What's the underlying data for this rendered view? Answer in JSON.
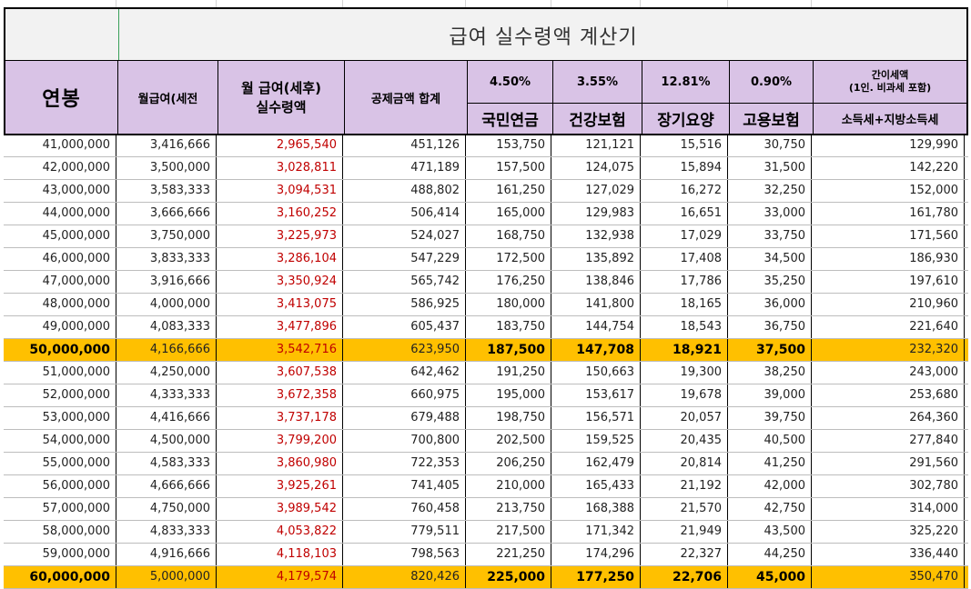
{
  "title": "급여 실수령액 계산기",
  "headers": {
    "annual": "연봉",
    "monthly_pre": "월급여(세전",
    "monthly_post_1": "월 급여(세후)",
    "monthly_post_2": "실수령액",
    "deduction_total": "공제금액 합계",
    "pension_rate": "4.50%",
    "health_rate": "3.55%",
    "longterm_rate": "12.81%",
    "employment_rate": "0.90%",
    "tax_top_1": "간이세액",
    "tax_top_2": "(1인. 비과세 포함)",
    "pension": "국민연금",
    "health": "건강보험",
    "longterm": "장기요양",
    "employment": "고용보험",
    "tax": "소득세+지방소득세"
  },
  "rows": [
    {
      "annual": "41,000,000",
      "pre": "3,416,666",
      "post": "2,965,540",
      "ded": "451,126",
      "pension": "153,750",
      "health": "121,121",
      "lt": "15,516",
      "emp": "30,750",
      "tax": "129,990",
      "hl": false
    },
    {
      "annual": "42,000,000",
      "pre": "3,500,000",
      "post": "3,028,811",
      "ded": "471,189",
      "pension": "157,500",
      "health": "124,075",
      "lt": "15,894",
      "emp": "31,500",
      "tax": "142,220",
      "hl": false
    },
    {
      "annual": "43,000,000",
      "pre": "3,583,333",
      "post": "3,094,531",
      "ded": "488,802",
      "pension": "161,250",
      "health": "127,029",
      "lt": "16,272",
      "emp": "32,250",
      "tax": "152,000",
      "hl": false
    },
    {
      "annual": "44,000,000",
      "pre": "3,666,666",
      "post": "3,160,252",
      "ded": "506,414",
      "pension": "165,000",
      "health": "129,983",
      "lt": "16,651",
      "emp": "33,000",
      "tax": "161,780",
      "hl": false
    },
    {
      "annual": "45,000,000",
      "pre": "3,750,000",
      "post": "3,225,973",
      "ded": "524,027",
      "pension": "168,750",
      "health": "132,938",
      "lt": "17,029",
      "emp": "33,750",
      "tax": "171,560",
      "hl": false
    },
    {
      "annual": "46,000,000",
      "pre": "3,833,333",
      "post": "3,286,104",
      "ded": "547,229",
      "pension": "172,500",
      "health": "135,892",
      "lt": "17,408",
      "emp": "34,500",
      "tax": "186,930",
      "hl": false
    },
    {
      "annual": "47,000,000",
      "pre": "3,916,666",
      "post": "3,350,924",
      "ded": "565,742",
      "pension": "176,250",
      "health": "138,846",
      "lt": "17,786",
      "emp": "35,250",
      "tax": "197,610",
      "hl": false
    },
    {
      "annual": "48,000,000",
      "pre": "4,000,000",
      "post": "3,413,075",
      "ded": "586,925",
      "pension": "180,000",
      "health": "141,800",
      "lt": "18,165",
      "emp": "36,000",
      "tax": "210,960",
      "hl": false
    },
    {
      "annual": "49,000,000",
      "pre": "4,083,333",
      "post": "3,477,896",
      "ded": "605,437",
      "pension": "183,750",
      "health": "144,754",
      "lt": "18,543",
      "emp": "36,750",
      "tax": "221,640",
      "hl": false
    },
    {
      "annual": "50,000,000",
      "pre": "4,166,666",
      "post": "3,542,716",
      "ded": "623,950",
      "pension": "187,500",
      "health": "147,708",
      "lt": "18,921",
      "emp": "37,500",
      "tax": "232,320",
      "hl": true
    },
    {
      "annual": "51,000,000",
      "pre": "4,250,000",
      "post": "3,607,538",
      "ded": "642,462",
      "pension": "191,250",
      "health": "150,663",
      "lt": "19,300",
      "emp": "38,250",
      "tax": "243,000",
      "hl": false
    },
    {
      "annual": "52,000,000",
      "pre": "4,333,333",
      "post": "3,672,358",
      "ded": "660,975",
      "pension": "195,000",
      "health": "153,617",
      "lt": "19,678",
      "emp": "39,000",
      "tax": "253,680",
      "hl": false
    },
    {
      "annual": "53,000,000",
      "pre": "4,416,666",
      "post": "3,737,178",
      "ded": "679,488",
      "pension": "198,750",
      "health": "156,571",
      "lt": "20,057",
      "emp": "39,750",
      "tax": "264,360",
      "hl": false
    },
    {
      "annual": "54,000,000",
      "pre": "4,500,000",
      "post": "3,799,200",
      "ded": "700,800",
      "pension": "202,500",
      "health": "159,525",
      "lt": "20,435",
      "emp": "40,500",
      "tax": "277,840",
      "hl": false
    },
    {
      "annual": "55,000,000",
      "pre": "4,583,333",
      "post": "3,860,980",
      "ded": "722,353",
      "pension": "206,250",
      "health": "162,479",
      "lt": "20,814",
      "emp": "41,250",
      "tax": "291,560",
      "hl": false
    },
    {
      "annual": "56,000,000",
      "pre": "4,666,666",
      "post": "3,925,261",
      "ded": "741,405",
      "pension": "210,000",
      "health": "165,433",
      "lt": "21,192",
      "emp": "42,000",
      "tax": "302,780",
      "hl": false
    },
    {
      "annual": "57,000,000",
      "pre": "4,750,000",
      "post": "3,989,542",
      "ded": "760,458",
      "pension": "213,750",
      "health": "168,388",
      "lt": "21,570",
      "emp": "42,750",
      "tax": "314,000",
      "hl": false
    },
    {
      "annual": "58,000,000",
      "pre": "4,833,333",
      "post": "4,053,822",
      "ded": "779,511",
      "pension": "217,500",
      "health": "171,342",
      "lt": "21,949",
      "emp": "43,500",
      "tax": "325,220",
      "hl": false
    },
    {
      "annual": "59,000,000",
      "pre": "4,916,666",
      "post": "4,118,103",
      "ded": "798,563",
      "pension": "221,250",
      "health": "174,296",
      "lt": "22,327",
      "emp": "44,250",
      "tax": "336,440",
      "hl": false
    },
    {
      "annual": "60,000,000",
      "pre": "5,000,000",
      "post": "4,179,574",
      "ded": "820,426",
      "pension": "225,000",
      "health": "177,250",
      "lt": "22,706",
      "emp": "45,000",
      "tax": "350,470",
      "hl": true
    }
  ],
  "colors": {
    "header_bg": "#d9c3e6",
    "highlight_bg": "#ffc000",
    "post_text": "#c00000",
    "title_bg": "#f2f2f2"
  }
}
